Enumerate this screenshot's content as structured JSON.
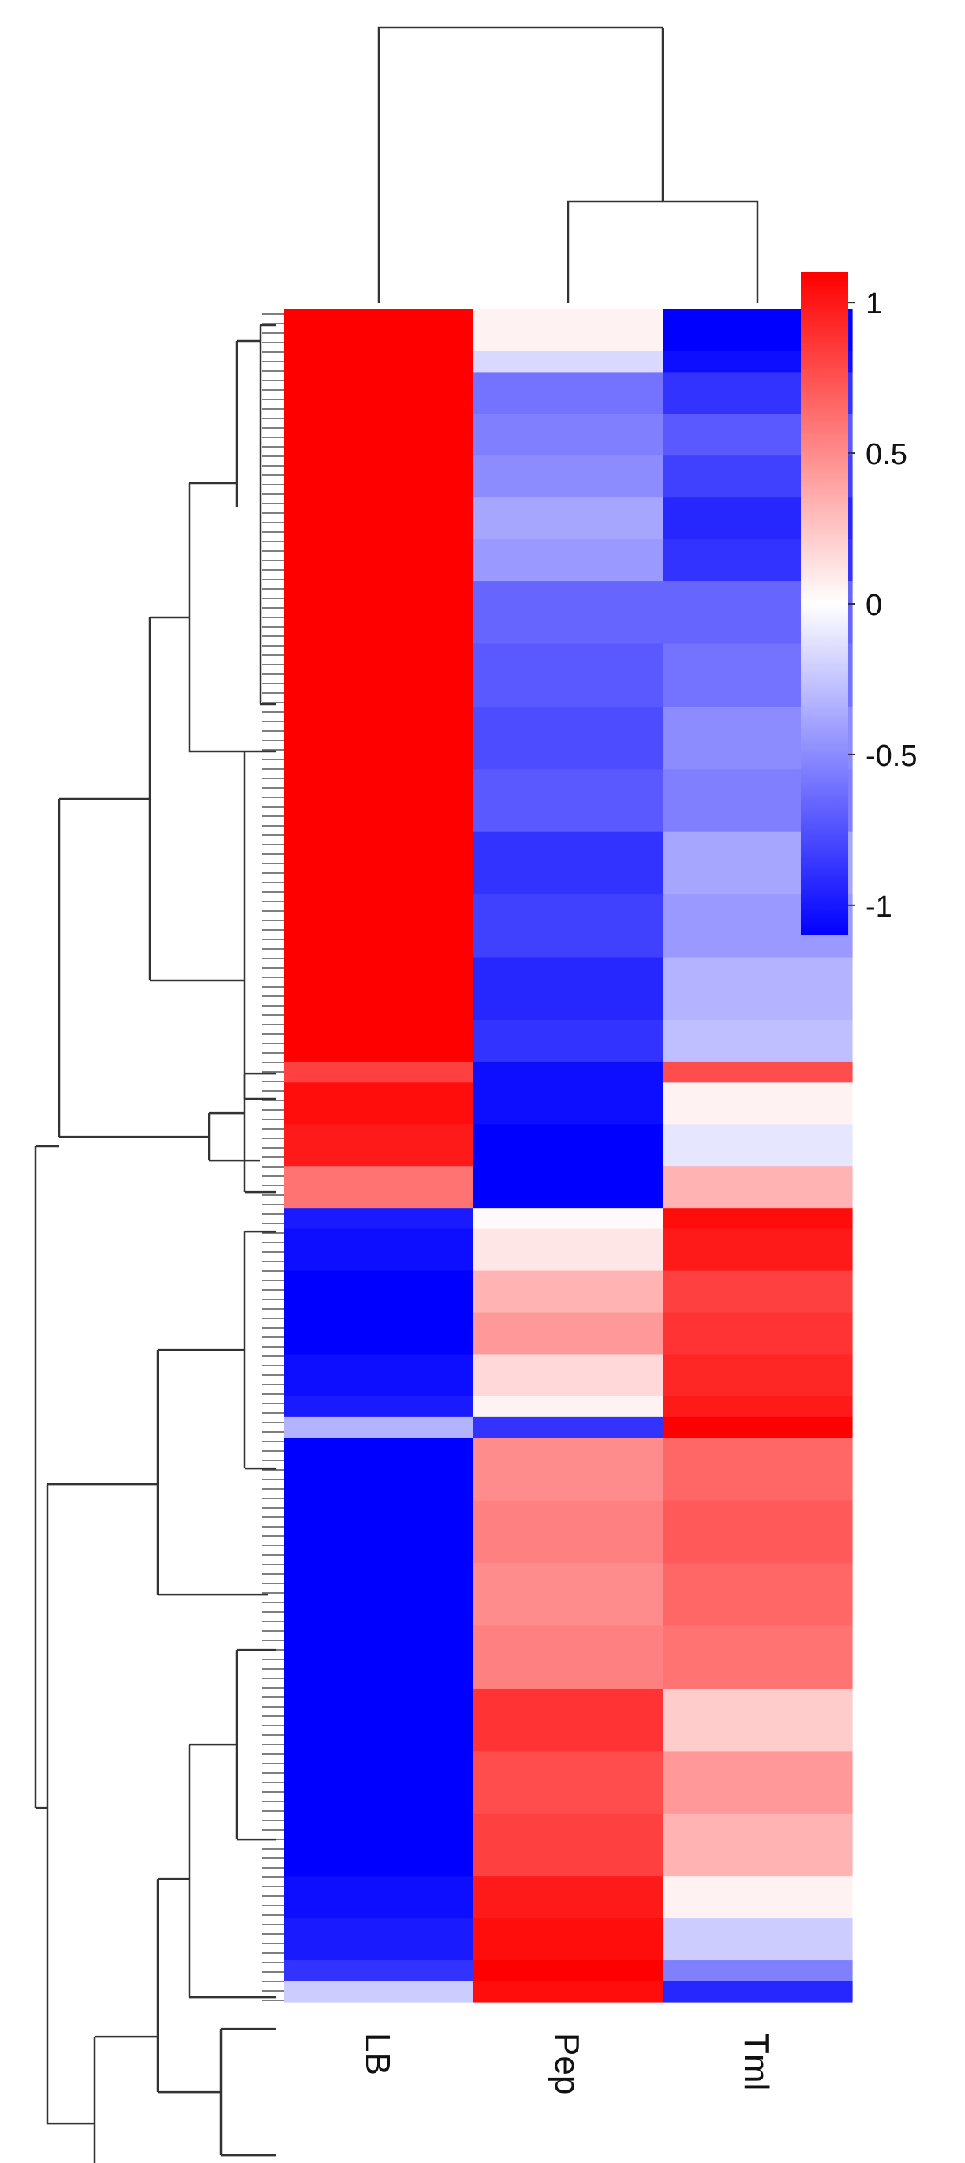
{
  "chart_data": {
    "type": "heatmap",
    "title": "",
    "columns": [
      "LB",
      "Pep",
      "Tml"
    ],
    "column_order_note": "",
    "row_blocks": [
      {
        "weight": 2,
        "values": [
          1.0,
          0.05,
          -1.0
        ]
      },
      {
        "weight": 1,
        "values": [
          1.0,
          -0.15,
          -0.95
        ]
      },
      {
        "weight": 2,
        "values": [
          1.0,
          -0.55,
          -0.8
        ]
      },
      {
        "weight": 2,
        "values": [
          1.0,
          -0.5,
          -0.65
        ]
      },
      {
        "weight": 2,
        "values": [
          1.0,
          -0.45,
          -0.75
        ]
      },
      {
        "weight": 2,
        "values": [
          1.0,
          -0.35,
          -0.85
        ]
      },
      {
        "weight": 2,
        "values": [
          1.0,
          -0.4,
          -0.8
        ]
      },
      {
        "weight": 3,
        "values": [
          1.0,
          -0.6,
          -0.6
        ]
      },
      {
        "weight": 3,
        "values": [
          1.0,
          -0.65,
          -0.55
        ]
      },
      {
        "weight": 3,
        "values": [
          1.0,
          -0.7,
          -0.45
        ]
      },
      {
        "weight": 3,
        "values": [
          1.0,
          -0.65,
          -0.5
        ]
      },
      {
        "weight": 3,
        "values": [
          1.0,
          -0.8,
          -0.35
        ]
      },
      {
        "weight": 3,
        "values": [
          1.0,
          -0.75,
          -0.4
        ]
      },
      {
        "weight": 3,
        "values": [
          1.0,
          -0.85,
          -0.3
        ]
      },
      {
        "weight": 2,
        "values": [
          1.0,
          -0.8,
          -0.25
        ]
      },
      {
        "weight": 1,
        "values": [
          0.75,
          -0.95,
          0.7
        ]
      },
      {
        "weight": 2,
        "values": [
          0.95,
          -0.95,
          0.05
        ]
      },
      {
        "weight": 2,
        "values": [
          0.9,
          -1.0,
          -0.1
        ]
      },
      {
        "weight": 2,
        "values": [
          0.55,
          -1.0,
          0.3
        ]
      },
      {
        "weight": 1,
        "values": [
          -0.9,
          0.02,
          0.95
        ]
      },
      {
        "weight": 2,
        "values": [
          -0.95,
          0.1,
          0.9
        ]
      },
      {
        "weight": 2,
        "values": [
          -1.0,
          0.3,
          0.75
        ]
      },
      {
        "weight": 2,
        "values": [
          -1.0,
          0.4,
          0.8
        ]
      },
      {
        "weight": 2,
        "values": [
          -0.95,
          0.15,
          0.85
        ]
      },
      {
        "weight": 1,
        "values": [
          -0.9,
          0.05,
          0.9
        ]
      },
      {
        "weight": 1,
        "values": [
          -0.3,
          -0.8,
          1.0
        ]
      },
      {
        "weight": 3,
        "values": [
          -1.0,
          0.45,
          0.6
        ]
      },
      {
        "weight": 3,
        "values": [
          -1.0,
          0.5,
          0.65
        ]
      },
      {
        "weight": 3,
        "values": [
          -1.0,
          0.45,
          0.6
        ]
      },
      {
        "weight": 3,
        "values": [
          -1.0,
          0.5,
          0.55
        ]
      },
      {
        "weight": 3,
        "values": [
          -1.0,
          0.8,
          0.2
        ]
      },
      {
        "weight": 3,
        "values": [
          -1.0,
          0.7,
          0.4
        ]
      },
      {
        "weight": 3,
        "values": [
          -1.0,
          0.75,
          0.3
        ]
      },
      {
        "weight": 2,
        "values": [
          -0.95,
          0.9,
          0.05
        ]
      },
      {
        "weight": 2,
        "values": [
          -0.9,
          0.95,
          -0.2
        ]
      },
      {
        "weight": 1,
        "values": [
          -0.8,
          1.0,
          -0.5
        ]
      },
      {
        "weight": 1,
        "values": [
          -0.2,
          0.95,
          -0.85
        ]
      }
    ],
    "colorscale": {
      "min": -1.1,
      "max": 1.1,
      "low_color": "#0000ff",
      "mid_color": "#ffffff",
      "high_color": "#ff0000",
      "ticks": [
        {
          "value": 1,
          "label": "1"
        },
        {
          "value": 0.5,
          "label": "0.5"
        },
        {
          "value": 0,
          "label": "0"
        },
        {
          "value": -0.5,
          "label": "-0.5"
        },
        {
          "value": -1,
          "label": "-1"
        }
      ]
    },
    "column_dendrogram": "(LB,(Pep,Tml))",
    "row_dendrogram": "two main clusters: LB-high rows (top) and LB-low rows (bottom)",
    "legend_position": "right"
  }
}
